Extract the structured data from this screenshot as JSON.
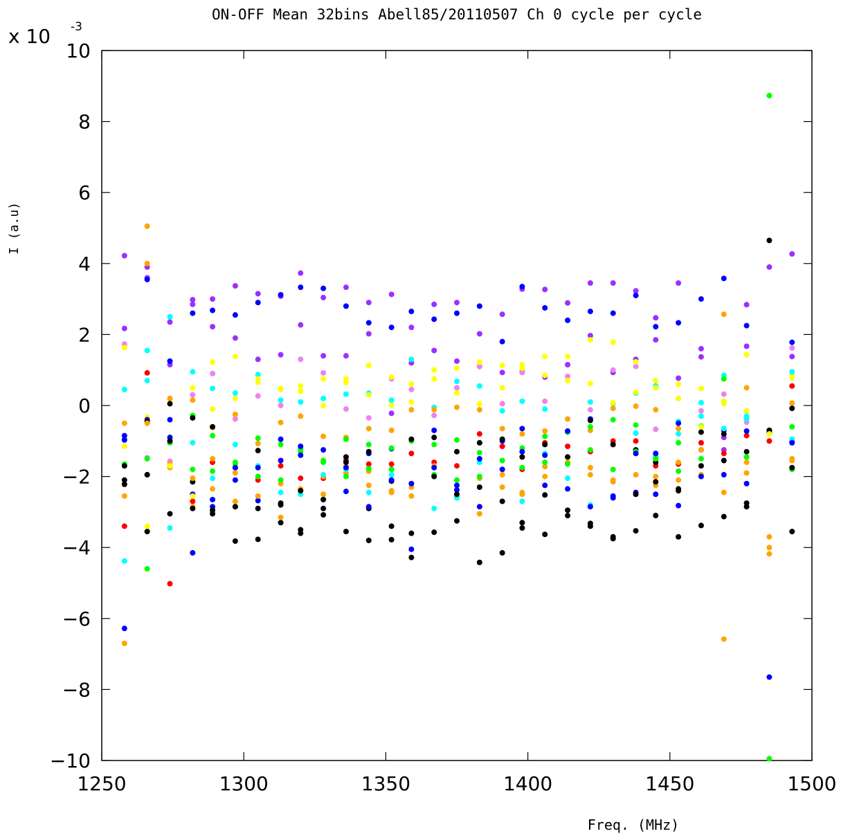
{
  "chart_data": {
    "type": "scatter",
    "title": "ON-OFF Mean 32bins Abell85/20110507 Ch 0 cycle per cycle",
    "xlabel": "Freq. (MHz)",
    "ylabel": "I (a.u)",
    "y_multiplier": {
      "prefix": "x 10",
      "exponent": "-3"
    },
    "xlim": [
      1250,
      1500
    ],
    "ylim": [
      -10,
      10
    ],
    "xticks": [
      1250,
      1300,
      1350,
      1400,
      1450,
      1500
    ],
    "xtick_labels": [
      "1250",
      "1300",
      "1350",
      "1400",
      "1450",
      "1500"
    ],
    "yticks": [
      -10,
      -8,
      -6,
      -4,
      -2,
      0,
      2,
      4,
      6,
      8,
      10
    ],
    "ytick_labels": [
      "−10",
      "−8",
      "−6",
      "−4",
      "−2",
      "0",
      "2",
      "4",
      "6",
      "8",
      "10"
    ],
    "grid": false,
    "legend": "none",
    "x": [
      1258,
      1266,
      1274,
      1282,
      1289,
      1297,
      1305,
      1313,
      1320,
      1328,
      1336,
      1344,
      1352,
      1359,
      1367,
      1375,
      1383,
      1391,
      1398,
      1406,
      1414,
      1422,
      1430,
      1438,
      1445,
      1453,
      1461,
      1469,
      1477,
      1485,
      1493
    ],
    "series": [
      {
        "color": "#9b30ff",
        "values": [
          4.22,
          3.9,
          2.35,
          2.98,
          3.0,
          3.37,
          3.15,
          3.08,
          3.73,
          3.04,
          3.33,
          2.9,
          3.13,
          1.2,
          2.85,
          2.9,
          2.02,
          2.57,
          3.28,
          3.27,
          2.89,
          3.45,
          3.45,
          3.23,
          2.47,
          3.45,
          1.6,
          -0.9,
          2.84,
          3.9,
          4.27
        ]
      },
      {
        "color": "#9b30ff",
        "values": [
          2.17,
          3.6,
          1.15,
          2.85,
          2.22,
          1.9,
          1.3,
          1.43,
          2.27,
          1.4,
          1.4,
          2.02,
          -0.22,
          2.2,
          1.55,
          1.25,
          1.1,
          0.93,
          0.95,
          0.8,
          1.15,
          1.97,
          0.93,
          1.3,
          1.85,
          0.77,
          1.37,
          -1.25,
          1.67,
          -0.78,
          1.38
        ]
      },
      {
        "color": "#0000ff",
        "values": [
          -6.28,
          3.55,
          1.25,
          2.6,
          2.68,
          2.55,
          2.9,
          3.12,
          3.33,
          3.3,
          2.8,
          2.33,
          2.2,
          2.65,
          2.43,
          2.6,
          2.8,
          1.8,
          3.35,
          2.75,
          2.4,
          2.65,
          2.6,
          3.1,
          2.22,
          2.33,
          3.0,
          3.58,
          2.25,
          -7.65,
          1.78
        ]
      },
      {
        "color": "#ee82ee",
        "values": [
          1.73,
          -1.47,
          -1.57,
          0.3,
          0.9,
          -0.38,
          0.27,
          0.0,
          1.3,
          0.92,
          -0.1,
          -0.35,
          0.75,
          0.45,
          -0.28,
          0.5,
          1.1,
          0.05,
          0.93,
          0.12,
          0.82,
          -0.12,
          1.0,
          1.1,
          -0.67,
          0.2,
          -0.15,
          0.32,
          -0.47,
          -0.75,
          1.62
        ]
      },
      {
        "color": "#ffff00",
        "values": [
          1.63,
          -0.33,
          0.18,
          0.5,
          1.22,
          1.38,
          0.65,
          0.48,
          0.55,
          0.0,
          0.75,
          1.13,
          0.02,
          0.6,
          1.0,
          1.05,
          1.22,
          1.13,
          1.15,
          1.38,
          1.38,
          1.85,
          1.78,
          1.23,
          0.7,
          0.6,
          0.48,
          0.05,
          1.43,
          -0.8,
          0.85
        ]
      },
      {
        "color": "#00ffff",
        "values": [
          0.45,
          1.55,
          2.5,
          0.95,
          0.48,
          0.35,
          0.87,
          0.15,
          0.1,
          0.2,
          0.32,
          0.35,
          0.15,
          1.3,
          -0.05,
          0.68,
          0.55,
          -0.15,
          0.12,
          -0.1,
          -0.75,
          0.1,
          0.05,
          0.35,
          0.55,
          -0.45,
          0.08,
          0.85,
          -0.3,
          -0.8,
          0.95
        ]
      },
      {
        "color": "#ffa500",
        "values": [
          -0.5,
          5.05,
          0.2,
          0.15,
          -0.62,
          -0.25,
          -1.07,
          -0.48,
          -0.3,
          -0.87,
          -0.9,
          -0.65,
          -0.7,
          -0.12,
          -0.12,
          -0.05,
          -0.12,
          -0.65,
          -0.8,
          -0.72,
          -0.38,
          -0.7,
          -0.08,
          -0.02,
          -0.12,
          -0.65,
          -0.6,
          2.57,
          0.5,
          -3.7,
          0.07
        ]
      },
      {
        "color": "#00ff00",
        "values": [
          -0.95,
          -1.5,
          -0.9,
          -0.28,
          -0.85,
          -1.65,
          -0.92,
          -1.1,
          -1.22,
          -1.6,
          -0.95,
          -1.1,
          -1.8,
          -0.95,
          -1.1,
          -0.97,
          -1.33,
          -0.95,
          -1.2,
          -0.87,
          -0.75,
          -0.6,
          -0.4,
          -0.55,
          -1.45,
          -1.05,
          -0.58,
          0.75,
          -1.45,
          8.73,
          -0.6
        ]
      },
      {
        "color": "#0000ff",
        "values": [
          -0.85,
          -0.4,
          -0.4,
          -2.5,
          -2.65,
          -2.1,
          -2.68,
          -0.95,
          -1.15,
          -1.25,
          -2.42,
          -1.35,
          -1.22,
          -4.05,
          -0.7,
          -2.25,
          -2.85,
          -1.0,
          -1.3,
          -2.25,
          -0.72,
          -0.38,
          -2.55,
          -2.45,
          -2.5,
          -0.5,
          -1.25,
          -0.7,
          -2.2,
          -0.7,
          -1.02
        ]
      },
      {
        "color": "#ff0000",
        "values": [
          -3.4,
          0.92,
          -5.02,
          -2.7,
          -1.6,
          -1.75,
          -2.1,
          -1.7,
          -2.05,
          -2.05,
          -1.55,
          -1.65,
          -1.65,
          -1.35,
          -1.6,
          -1.7,
          -0.8,
          -1.15,
          -1.8,
          -1.05,
          -1.15,
          -1.3,
          -1.0,
          -1.0,
          -1.7,
          -1.65,
          -1.05,
          -1.35,
          -0.85,
          -1.0,
          0.55
        ]
      },
      {
        "color": "#000000",
        "values": [
          -2.1,
          -3.55,
          -3.05,
          -2.15,
          -3.05,
          -3.82,
          -3.77,
          -3.3,
          -3.6,
          -3.08,
          -3.55,
          -3.8,
          -3.78,
          -4.28,
          -3.57,
          -3.25,
          -4.42,
          -4.15,
          -3.45,
          -3.63,
          -3.1,
          -3.32,
          -3.7,
          -3.53,
          -3.1,
          -3.7,
          -3.38,
          -3.13,
          -2.85,
          4.65,
          -3.55
        ]
      },
      {
        "color": "#000000",
        "values": [
          -2.22,
          -0.45,
          0.05,
          -0.35,
          -0.6,
          -2.85,
          -1.27,
          -2.75,
          -3.5,
          -2.9,
          -1.45,
          -2.9,
          -2.13,
          -3.6,
          -0.9,
          -1.3,
          -1.05,
          -2.7,
          -1.45,
          -2.52,
          -1.45,
          -0.42,
          -1.1,
          -1.25,
          -1.6,
          -2.4,
          -0.75,
          -1.55,
          -1.3,
          -0.7,
          -0.08
        ]
      },
      {
        "color": "#ffa500",
        "values": [
          -2.55,
          4.0,
          -1.65,
          -2.05,
          -2.35,
          -2.7,
          -2.55,
          -3.15,
          -2.35,
          -2.5,
          -1.9,
          -1.85,
          -2.45,
          -2.55,
          -1.95,
          -2.6,
          -3.05,
          -2.3,
          -2.5,
          -1.72,
          -2.05,
          -1.95,
          -2.1,
          -1.95,
          -2.25,
          -2.1,
          -1.95,
          -2.45,
          -1.9,
          -4.18,
          -1.55
        ]
      },
      {
        "color": "#ffa500",
        "values": [
          -6.7,
          -0.5,
          -1.75,
          -2.85,
          -1.5,
          -1.9,
          -2.0,
          -2.2,
          -2.4,
          -2.0,
          -1.7,
          -2.25,
          -2.4,
          -2.3,
          -1.7,
          -2.55,
          -2.05,
          -1.95,
          -2.45,
          -2.0,
          -1.6,
          -1.75,
          -2.15,
          -1.35,
          -2.0,
          -1.6,
          -1.25,
          -6.58,
          -1.6,
          -4.0,
          -1.5
        ]
      },
      {
        "color": "#00ffff",
        "values": [
          -4.38,
          0.7,
          -3.45,
          -1.05,
          -2.05,
          -1.1,
          -1.7,
          -2.45,
          -2.5,
          -1.95,
          -1.8,
          -2.45,
          -1.95,
          -2.2,
          -2.9,
          -2.6,
          -1.6,
          -1.8,
          -2.7,
          -1.35,
          -2.05,
          -2.8,
          -2.6,
          -0.78,
          -1.4,
          -0.8,
          -0.3,
          -0.65,
          -0.38,
          -0.8,
          -0.95
        ]
      },
      {
        "color": "#00ff00",
        "values": [
          -1.65,
          -4.6,
          -1.05,
          -1.8,
          -1.85,
          -1.6,
          -2.0,
          -2.1,
          -1.3,
          -1.55,
          -2.0,
          -1.78,
          -1.2,
          -1.0,
          -1.95,
          -2.1,
          -2.0,
          -1.55,
          -1.75,
          -1.6,
          -1.65,
          -1.25,
          -1.8,
          -1.3,
          -1.5,
          -1.85,
          -1.5,
          0.12,
          -1.45,
          -9.95,
          -1.8
        ]
      },
      {
        "color": "#0000ff",
        "values": [
          -0.97,
          -1.95,
          -0.9,
          -4.15,
          -2.85,
          -1.75,
          -1.75,
          -1.55,
          -1.4,
          -2.65,
          -1.75,
          -2.85,
          -2.1,
          -2.2,
          -1.75,
          -2.38,
          -1.5,
          -1.8,
          -0.65,
          -1.4,
          -2.35,
          -2.85,
          -2.6,
          -1.35,
          -1.35,
          -2.82,
          -2.0,
          -1.95,
          -0.72,
          -0.75,
          -1.05
        ]
      },
      {
        "color": "#000000",
        "values": [
          -1.7,
          -1.95,
          -1.0,
          -2.9,
          -2.95,
          -2.85,
          -2.9,
          -2.8,
          -2.4,
          -2.65,
          -1.6,
          -1.3,
          -3.4,
          -0.95,
          -2.0,
          -2.5,
          -2.3,
          -0.95,
          -3.3,
          -1.1,
          -2.95,
          -3.4,
          -3.75,
          -2.5,
          -2.15,
          -2.35,
          -1.7,
          -0.8,
          -2.75,
          -0.7,
          -1.75
        ]
      },
      {
        "color": "#ffff00",
        "values": [
          -1.15,
          -3.4,
          -1.7,
          -2.55,
          -0.1,
          0.2,
          0.75,
          0.45,
          0.4,
          0.75,
          0.65,
          0.3,
          0.8,
          0.1,
          0.75,
          0.35,
          0.05,
          0.5,
          1.05,
          0.85,
          0.7,
          0.62,
          0.08,
          0.38,
          0.5,
          0.2,
          -0.6,
          0.12,
          -0.15,
          -0.8,
          0.78
        ]
      }
    ]
  }
}
